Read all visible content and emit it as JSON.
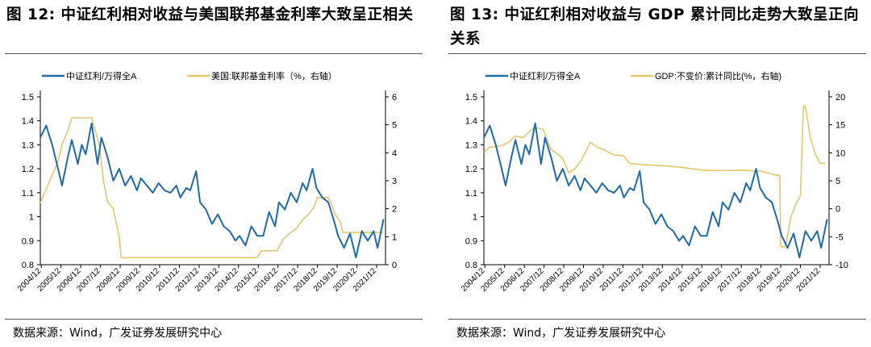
{
  "figures": [
    {
      "title": "图 12: 中证红利相对收益与美国联邦基金利率大致呈正相关",
      "source": "数据来源：Wind，广发证券发展研究中心"
    },
    {
      "title": "图 13: 中证红利相对收益与 GDP 累计同比走势大致呈正向关系",
      "source": "数据来源：Wind，广发证券发展研究中心"
    }
  ],
  "chart_data": [
    {
      "type": "line",
      "title": "",
      "x_tick_labels": [
        "2004/12",
        "2005/12",
        "2006/12",
        "2007/12",
        "2008/12",
        "2009/12",
        "2010/12",
        "2011/12",
        "2012/12",
        "2013/12",
        "2014/12",
        "2015/12",
        "2016/12",
        "2017/12",
        "2018/12",
        "2019/12",
        "2020/12",
        "2021/12"
      ],
      "xlim": [
        2004.9,
        2022.4
      ],
      "y_left": {
        "lim": [
          0.8,
          1.5
        ],
        "ticks": [
          "0.8",
          "0.9",
          "1",
          "1.1",
          "1.2",
          "1.3",
          "1.4",
          "1.5"
        ]
      },
      "y_right": {
        "lim": [
          0,
          6
        ],
        "ticks": [
          "0",
          "1",
          "2",
          "3",
          "4",
          "5",
          "6"
        ]
      },
      "legend_position": "top",
      "grid": false,
      "series": [
        {
          "name": "中证红利/万得全A",
          "axis": "left",
          "color": "#1f6aa8",
          "x": [
            2004.9,
            2005.2,
            2005.5,
            2005.8,
            2006.0,
            2006.3,
            2006.5,
            2006.8,
            2007.0,
            2007.2,
            2007.5,
            2007.8,
            2008.0,
            2008.3,
            2008.6,
            2008.9,
            2009.2,
            2009.5,
            2009.8,
            2010.0,
            2010.3,
            2010.6,
            2010.9,
            2011.2,
            2011.5,
            2011.8,
            2012.0,
            2012.3,
            2012.5,
            2012.8,
            2013.0,
            2013.3,
            2013.6,
            2013.9,
            2014.2,
            2014.5,
            2014.8,
            2015.0,
            2015.3,
            2015.6,
            2015.9,
            2016.2,
            2016.5,
            2016.8,
            2017.0,
            2017.3,
            2017.6,
            2017.9,
            2018.2,
            2018.4,
            2018.7,
            2018.9,
            2019.2,
            2019.5,
            2019.8,
            2020.0,
            2020.3,
            2020.6,
            2020.9,
            2021.2,
            2021.5,
            2021.8,
            2022.0,
            2022.3
          ],
          "y": [
            1.33,
            1.38,
            1.3,
            1.2,
            1.13,
            1.25,
            1.32,
            1.22,
            1.3,
            1.26,
            1.39,
            1.22,
            1.33,
            1.25,
            1.15,
            1.2,
            1.13,
            1.17,
            1.11,
            1.16,
            1.13,
            1.1,
            1.14,
            1.11,
            1.1,
            1.13,
            1.08,
            1.12,
            1.11,
            1.19,
            1.06,
            1.03,
            0.97,
            1.01,
            0.96,
            0.94,
            0.9,
            0.92,
            0.88,
            0.96,
            0.92,
            0.92,
            1.02,
            0.96,
            1.06,
            1.03,
            1.1,
            1.06,
            1.14,
            1.11,
            1.2,
            1.12,
            1.08,
            1.06,
            0.98,
            0.92,
            0.87,
            0.93,
            0.83,
            0.94,
            0.9,
            0.94,
            0.87,
            0.99
          ]
        },
        {
          "name": "美国:联邦基金利率（%，右轴）",
          "axis": "right",
          "color": "#e6c56b",
          "x": [
            2004.9,
            2005.2,
            2005.5,
            2005.8,
            2006.0,
            2006.3,
            2006.5,
            2007.0,
            2007.5,
            2007.7,
            2007.9,
            2008.1,
            2008.3,
            2008.6,
            2008.9,
            2009.0,
            2015.9,
            2016.1,
            2016.9,
            2017.2,
            2017.5,
            2017.9,
            2018.2,
            2018.5,
            2018.8,
            2018.95,
            2019.5,
            2019.7,
            2019.85,
            2020.1,
            2020.25,
            2022.3
          ],
          "y": [
            2.2,
            2.7,
            3.2,
            3.7,
            4.3,
            4.8,
            5.25,
            5.25,
            5.25,
            4.75,
            4.25,
            3.0,
            2.25,
            2.0,
            1.0,
            0.25,
            0.25,
            0.5,
            0.5,
            0.9,
            1.1,
            1.3,
            1.6,
            1.8,
            2.1,
            2.4,
            2.4,
            2.1,
            1.8,
            1.55,
            1.15,
            1.15
          ]
        }
      ]
    },
    {
      "type": "line",
      "title": "",
      "x_tick_labels": [
        "2004/12",
        "2005/12",
        "2006/12",
        "2007/12",
        "2008/12",
        "2009/12",
        "2010/12",
        "2011/12",
        "2012/12",
        "2013/12",
        "2014/12",
        "2015/12",
        "2016/12",
        "2017/12",
        "2018/12",
        "2019/12",
        "2020/12",
        "2021/12"
      ],
      "xlim": [
        2004.9,
        2022.4
      ],
      "y_left": {
        "lim": [
          0.8,
          1.5
        ],
        "ticks": [
          "0.8",
          "0.9",
          "1",
          "1.1",
          "1.2",
          "1.3",
          "1.4",
          "1.5"
        ]
      },
      "y_right": {
        "lim": [
          -10,
          20
        ],
        "ticks": [
          "-10",
          "-5",
          "0",
          "5",
          "10",
          "15",
          "20"
        ]
      },
      "legend_position": "top",
      "grid": false,
      "series": [
        {
          "name": "中证红利/万得全A",
          "axis": "left",
          "color": "#1f6aa8",
          "x": [
            2004.9,
            2005.2,
            2005.5,
            2005.8,
            2006.0,
            2006.3,
            2006.5,
            2006.8,
            2007.0,
            2007.2,
            2007.5,
            2007.8,
            2008.0,
            2008.3,
            2008.6,
            2008.9,
            2009.2,
            2009.5,
            2009.8,
            2010.0,
            2010.3,
            2010.6,
            2010.9,
            2011.2,
            2011.5,
            2011.8,
            2012.0,
            2012.3,
            2012.5,
            2012.8,
            2013.0,
            2013.3,
            2013.6,
            2013.9,
            2014.2,
            2014.5,
            2014.8,
            2015.0,
            2015.3,
            2015.6,
            2015.9,
            2016.2,
            2016.5,
            2016.8,
            2017.0,
            2017.3,
            2017.6,
            2017.9,
            2018.2,
            2018.4,
            2018.7,
            2018.9,
            2019.2,
            2019.5,
            2019.8,
            2020.0,
            2020.3,
            2020.6,
            2020.9,
            2021.2,
            2021.5,
            2021.8,
            2022.0,
            2022.3
          ],
          "y": [
            1.33,
            1.38,
            1.3,
            1.2,
            1.13,
            1.25,
            1.32,
            1.22,
            1.3,
            1.26,
            1.39,
            1.22,
            1.33,
            1.25,
            1.15,
            1.2,
            1.13,
            1.17,
            1.11,
            1.16,
            1.13,
            1.1,
            1.14,
            1.11,
            1.1,
            1.13,
            1.08,
            1.12,
            1.11,
            1.19,
            1.06,
            1.03,
            0.97,
            1.01,
            0.96,
            0.94,
            0.9,
            0.92,
            0.88,
            0.96,
            0.92,
            0.92,
            1.02,
            0.96,
            1.06,
            1.03,
            1.1,
            1.06,
            1.14,
            1.11,
            1.2,
            1.12,
            1.08,
            1.06,
            0.98,
            0.92,
            0.87,
            0.93,
            0.83,
            0.94,
            0.9,
            0.94,
            0.87,
            0.99
          ]
        },
        {
          "name": "GDP:不变价:累计同比(%，右轴)",
          "axis": "right",
          "color": "#e6c56b",
          "x": [
            2004.9,
            2005.2,
            2005.7,
            2005.9,
            2006.2,
            2006.5,
            2006.9,
            2007.2,
            2007.5,
            2007.9,
            2008.3,
            2008.6,
            2008.9,
            2009.2,
            2009.5,
            2009.75,
            2009.95,
            2010.3,
            2010.6,
            2010.95,
            2011.5,
            2011.95,
            2012.3,
            2012.95,
            2013.95,
            2014.95,
            2015.95,
            2016.95,
            2017.95,
            2018.95,
            2019.75,
            2019.9,
            2019.95,
            2020.2,
            2020.45,
            2020.7,
            2020.95,
            2021.1,
            2021.2,
            2021.45,
            2021.7,
            2021.95,
            2022.2
          ],
          "y": [
            10.1,
            11.0,
            11.2,
            11.4,
            12.0,
            13.0,
            12.7,
            13.8,
            14.5,
            14.2,
            10.6,
            9.9,
            9.0,
            6.4,
            7.1,
            8.2,
            9.4,
            11.9,
            11.1,
            10.6,
            9.6,
            9.5,
            8.1,
            7.9,
            7.7,
            7.4,
            6.9,
            6.8,
            6.9,
            6.7,
            6.0,
            6.0,
            -6.8,
            -6.8,
            -1.6,
            0.7,
            2.3,
            18.3,
            18.3,
            12.7,
            9.8,
            8.1,
            8.1
          ]
        }
      ]
    }
  ]
}
